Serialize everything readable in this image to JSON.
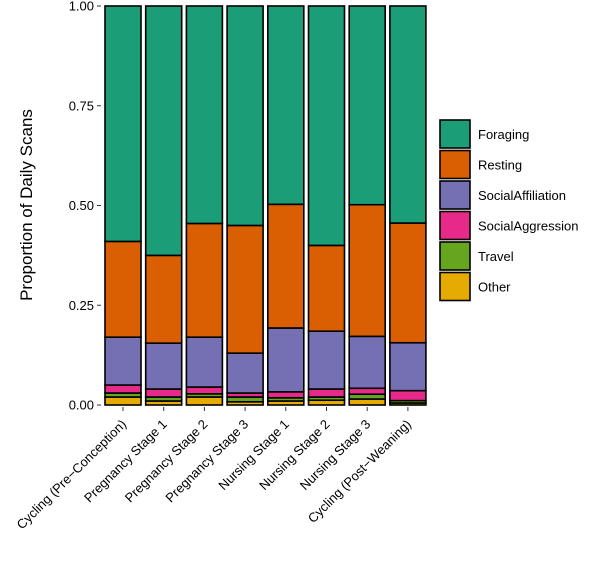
{
  "chart_data": {
    "type": "bar",
    "stacked": true,
    "title": "",
    "xlabel": "",
    "ylabel": "Proportion of Daily Scans",
    "ylim": [
      0,
      1
    ],
    "yticks": [
      "0.00",
      "0.25",
      "0.50",
      "0.75",
      "1.00"
    ],
    "legend_position": "right",
    "categories": [
      "Cycling (Pre−Conception)",
      "Pregnancy Stage 1",
      "Pregnancy Stage 2",
      "Pregnancy Stage 3",
      "Nursing Stage 1",
      "Nursing Stage 2",
      "Nursing Stage 3",
      "Cycling (Post−Weaning)"
    ],
    "series": [
      {
        "name": "Other",
        "color": "#E6AB02",
        "values": [
          0.02,
          0.01,
          0.02,
          0.008,
          0.01,
          0.012,
          0.015,
          0.005
        ]
      },
      {
        "name": "Travel",
        "color": "#66A61E",
        "values": [
          0.01,
          0.01,
          0.008,
          0.012,
          0.008,
          0.008,
          0.012,
          0.006
        ]
      },
      {
        "name": "SocialAggression",
        "color": "#E7298A",
        "values": [
          0.02,
          0.02,
          0.017,
          0.01,
          0.015,
          0.02,
          0.015,
          0.025
        ]
      },
      {
        "name": "SocialAffiliation",
        "color": "#7570B3",
        "values": [
          0.12,
          0.115,
          0.125,
          0.1,
          0.16,
          0.145,
          0.13,
          0.12
        ]
      },
      {
        "name": "Resting",
        "color": "#D95F02",
        "values": [
          0.24,
          0.22,
          0.285,
          0.32,
          0.31,
          0.215,
          0.33,
          0.3
        ]
      },
      {
        "name": "Foraging",
        "color": "#1B9E77",
        "values": [
          0.59,
          0.625,
          0.545,
          0.55,
          0.497,
          0.6,
          0.498,
          0.544
        ]
      }
    ],
    "legend_order": [
      "Foraging",
      "Resting",
      "SocialAffiliation",
      "SocialAggression",
      "Travel",
      "Other"
    ]
  }
}
